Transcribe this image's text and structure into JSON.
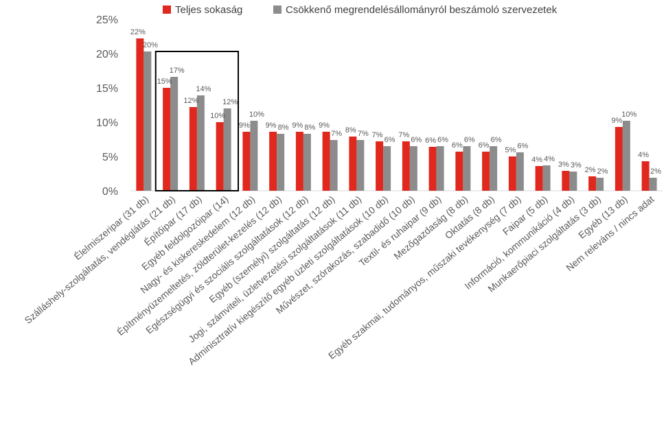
{
  "chart_data": {
    "type": "bar",
    "title": "",
    "xlabel": "",
    "ylabel": "",
    "ylim": [
      0,
      25
    ],
    "yticks": [
      "0%",
      "5%",
      "10%",
      "15%",
      "20%",
      "25%"
    ],
    "grid": false,
    "legend_position": "top",
    "value_unit": "%",
    "highlight_box_categories": [
      1,
      3
    ],
    "categories": [
      "Élelmiszeripar (31 db)",
      "Szálláshely-szolgáltatás, vendéglátás (21 db)",
      "Építőipar (17 db)",
      "Egyéb feldolgozóipar (14)",
      "Nagy- és kiskereskedelem (12 db)",
      "Építményüzemeltetés, zöldterület-kezelés (12 db)",
      "Egészségügyi és szociális szolgáltatások (12 db)",
      "Egyéb (személyi) szolgáltatás (12 db)",
      "Jogi, számviteli, üzletvezetési szolgáltatások (11 db)",
      "Adminisztratív kiegészítő egyéb üzleti szolgáltatások (10 db)",
      "Művészet, szórakozás, szabadidő (10 db)",
      "Textil- és ruhaipar (9 db)",
      "Mezőgazdaság (8 db)",
      "Oktatás (8 db)",
      "Egyéb szakmai, tudományos, műszaki tevékenység (7 db)",
      "Faipar (5 db)",
      "Információ, kommunikáció (4 db)",
      "Munkaerőpiaci szolgáltatás (3 db)",
      "Egyéb (13 db)",
      "Nem releváns / nincs adat"
    ],
    "series": [
      {
        "name": "Teljes sokaság",
        "color": "#e0281e",
        "values": [
          22.2,
          15.0,
          12.2,
          10.0,
          8.6,
          8.6,
          8.6,
          8.6,
          7.9,
          7.2,
          7.2,
          6.4,
          5.7,
          5.7,
          5.0,
          3.6,
          2.9,
          2.1,
          9.3,
          4.3
        ],
        "labels": [
          "22%",
          "15%",
          "12%",
          "10%",
          "9%",
          "9%",
          "9%",
          "9%",
          "8%",
          "7%",
          "7%",
          "6%",
          "6%",
          "6%",
          "5%",
          "4%",
          "3%",
          "2%",
          "9%",
          "4%"
        ]
      },
      {
        "name": "Csökkenő megrendelésállományról beszámoló szervezetek",
        "color": "#8c8c8c",
        "values": [
          20.3,
          16.6,
          13.9,
          12.0,
          10.2,
          8.3,
          8.3,
          7.4,
          7.4,
          6.5,
          6.5,
          6.5,
          6.5,
          6.5,
          5.6,
          3.7,
          2.8,
          1.9,
          10.2,
          1.9
        ],
        "labels": [
          "20%",
          "17%",
          "14%",
          "12%",
          "10%",
          "8%",
          "8%",
          "7%",
          "7%",
          "6%",
          "6%",
          "6%",
          "6%",
          "6%",
          "6%",
          "4%",
          "3%",
          "2%",
          "10%",
          "2%"
        ]
      }
    ]
  }
}
